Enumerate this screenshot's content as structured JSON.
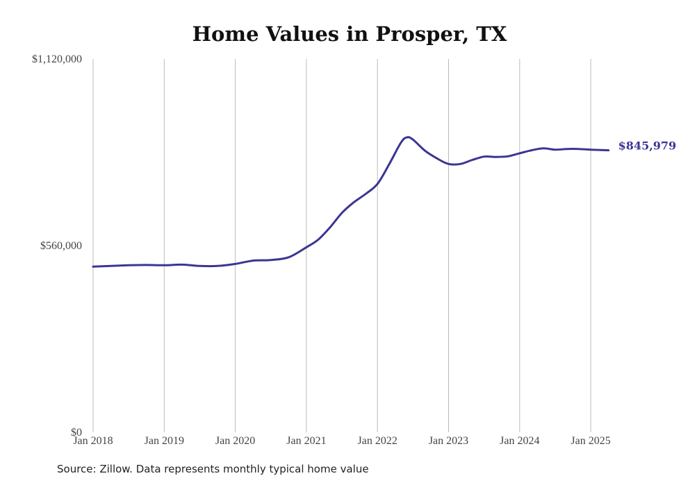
{
  "chart_data": {
    "type": "line",
    "title": "Home Values in Prosper, TX",
    "source": "Source: Zillow. Data represents monthly typical home value",
    "xlabel": "",
    "ylabel": "",
    "ylim": [
      0,
      1120000
    ],
    "xlim": [
      "2018-01",
      "2025-04"
    ],
    "yticks": [
      {
        "value": 0,
        "label": "$0"
      },
      {
        "value": 560000,
        "label": "$560,000"
      },
      {
        "value": 1120000,
        "label": "$1,120,000"
      }
    ],
    "xticks": [
      {
        "value": "2018-01",
        "label": "Jan 2018"
      },
      {
        "value": "2019-01",
        "label": "Jan 2019"
      },
      {
        "value": "2020-01",
        "label": "Jan 2020"
      },
      {
        "value": "2021-01",
        "label": "Jan 2021"
      },
      {
        "value": "2022-01",
        "label": "Jan 2022"
      },
      {
        "value": "2023-01",
        "label": "Jan 2023"
      },
      {
        "value": "2024-01",
        "label": "Jan 2024"
      },
      {
        "value": "2025-01",
        "label": "Jan 2025"
      }
    ],
    "grid": {
      "vertical": true,
      "horizontal": false
    },
    "color": "#3b3594",
    "end_label": "$845,979",
    "series": [
      {
        "x": [
          "2018-01",
          "2018-04",
          "2018-07",
          "2018-10",
          "2019-01",
          "2019-04",
          "2019-07",
          "2019-10",
          "2020-01",
          "2020-04",
          "2020-07",
          "2020-10",
          "2021-01",
          "2021-03",
          "2021-05",
          "2021-07",
          "2021-09",
          "2021-11",
          "2022-01",
          "2022-03",
          "2022-05",
          "2022-06",
          "2022-07",
          "2022-09",
          "2022-11",
          "2023-01",
          "2023-03",
          "2023-05",
          "2023-07",
          "2023-09",
          "2023-11",
          "2024-01",
          "2024-03",
          "2024-05",
          "2024-07",
          "2024-09",
          "2024-11",
          "2025-01",
          "2025-04"
        ],
        "values": [
          497000,
          499000,
          501000,
          502000,
          501000,
          503000,
          499000,
          499000,
          505000,
          515000,
          517000,
          525000,
          555000,
          578000,
          615000,
          658000,
          690000,
          715000,
          745000,
          805000,
          870000,
          885000,
          878000,
          845000,
          822000,
          805000,
          805000,
          817000,
          827000,
          826000,
          828000,
          837000,
          846000,
          852000,
          848000,
          850000,
          850000,
          848000,
          845979
        ]
      }
    ]
  }
}
